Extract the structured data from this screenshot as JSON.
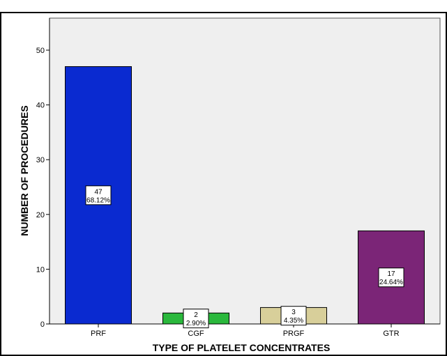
{
  "chart_data": {
    "type": "bar",
    "xlabel": "TYPE OF PLATELET CONCENTRATES",
    "ylabel": "NUMBER OF PROCEDURES",
    "ylim": [
      0,
      55
    ],
    "yticks": [
      "0",
      "10",
      "20",
      "30",
      "40",
      "50"
    ],
    "grid": false,
    "categories": [
      "PRF",
      "CGF",
      "PRGF",
      "GTR"
    ],
    "values": [
      47,
      2,
      3,
      17
    ],
    "data_labels": [
      {
        "count": "47",
        "percent": "68.12%"
      },
      {
        "count": "2",
        "percent": "2.90%"
      },
      {
        "count": "3",
        "percent": "4.35%"
      },
      {
        "count": "17",
        "percent": "24.64%"
      }
    ],
    "colors": [
      "#0a2ad0",
      "#2ab83c",
      "#d8cf9a",
      "#7b2577"
    ],
    "plot_background": "#efefef"
  }
}
